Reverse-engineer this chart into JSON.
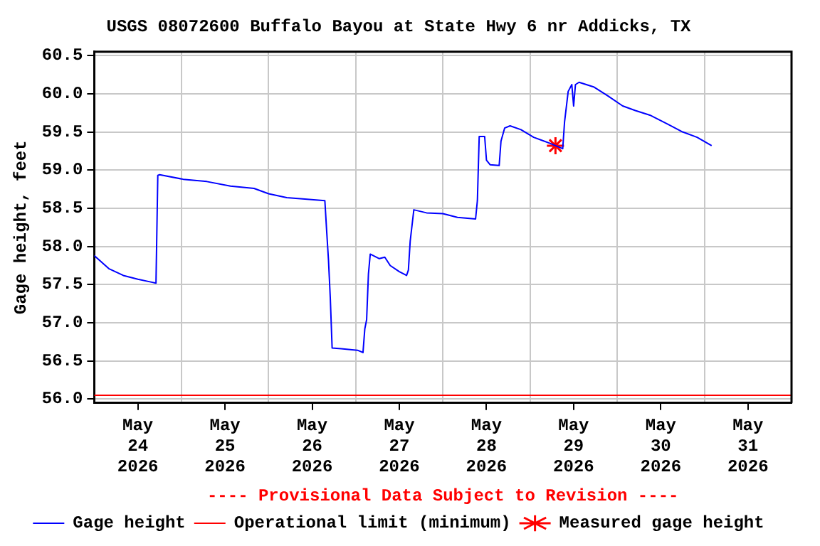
{
  "chart_data": {
    "type": "line",
    "title": "USGS 08072600 Buffalo Bayou at State Hwy 6 nr Addicks, TX",
    "ylabel": "Gage height, feet",
    "annotations": [
      "---- Provisional Data Subject to Revision ----"
    ],
    "xlim": [
      "2026-05-24T00:00",
      "2026-06-01T00:00"
    ],
    "xticks": [
      {
        "value": "2026-05-24T12:00",
        "label": "May 24 2026"
      },
      {
        "value": "2026-05-25T00:00",
        "label": null
      },
      {
        "value": "2026-05-25T12:00",
        "label": "May 25 2026"
      },
      {
        "value": "2026-05-26T00:00",
        "label": null
      },
      {
        "value": "2026-05-26T12:00",
        "label": "May 26 2026"
      },
      {
        "value": "2026-05-27T00:00",
        "label": null
      },
      {
        "value": "2026-05-27T12:00",
        "label": "May 27 2026"
      },
      {
        "value": "2026-05-28T00:00",
        "label": null
      },
      {
        "value": "2026-05-28T12:00",
        "label": "May 28 2026"
      },
      {
        "value": "2026-05-29T00:00",
        "label": null
      },
      {
        "value": "2026-05-29T12:00",
        "label": "May 29 2026"
      },
      {
        "value": "2026-05-30T00:00",
        "label": null
      },
      {
        "value": "2026-05-30T12:00",
        "label": "May 30 2026"
      },
      {
        "value": "2026-05-31T00:00",
        "label": null
      },
      {
        "value": "2026-05-31T12:00",
        "label": "May 31 2026"
      }
    ],
    "ylim": [
      55.95,
      60.55
    ],
    "yticks": [
      {
        "value": 56,
        "label": "56.0"
      },
      {
        "value": 56.5,
        "label": "56.5"
      },
      {
        "value": 57,
        "label": "57.0"
      },
      {
        "value": 57.5,
        "label": "57.5"
      },
      {
        "value": 58,
        "label": "58.0"
      },
      {
        "value": 58.5,
        "label": "58.5"
      },
      {
        "value": 59,
        "label": "59.0"
      },
      {
        "value": 59.5,
        "label": "59.5"
      },
      {
        "value": 60,
        "label": "60.0"
      },
      {
        "value": 60.5,
        "label": "60.5"
      }
    ],
    "grid": true,
    "legend": "bottom",
    "marker": "none",
    "series": [
      {
        "name": "Gage height",
        "color": "#0000ff",
        "x": [
          "2026-05-24T00:00",
          "2026-05-24T04:00",
          "2026-05-24T08:00",
          "2026-05-24T12:00",
          "2026-05-24T16:00",
          "2026-05-24T17:00",
          "2026-05-24T17:30",
          "2026-05-24T18:00",
          "2026-05-25T00:30",
          "2026-05-25T07:00",
          "2026-05-25T13:30",
          "2026-05-25T20:00",
          "2026-05-26T00:00",
          "2026-05-26T05:00",
          "2026-05-26T10:00",
          "2026-05-26T15:30",
          "2026-05-26T16:00",
          "2026-05-26T16:30",
          "2026-05-26T17:00",
          "2026-05-26T17:30",
          "2026-05-26T20:00",
          "2026-05-27T00:30",
          "2026-05-27T02:00",
          "2026-05-27T02:30",
          "2026-05-27T03:00",
          "2026-05-27T03:30",
          "2026-05-27T04:00",
          "2026-05-27T06:30",
          "2026-05-27T08:00",
          "2026-05-27T09:30",
          "2026-05-27T12:00",
          "2026-05-27T14:00",
          "2026-05-27T14:30",
          "2026-05-27T15:00",
          "2026-05-27T16:00",
          "2026-05-27T19:30",
          "2026-05-28T00:00",
          "2026-05-28T04:00",
          "2026-05-28T09:00",
          "2026-05-28T09:30",
          "2026-05-28T10:00",
          "2026-05-28T11:30",
          "2026-05-28T12:00",
          "2026-05-28T13:00",
          "2026-05-28T15:30",
          "2026-05-28T16:00",
          "2026-05-28T17:00",
          "2026-05-28T18:30",
          "2026-05-28T21:30",
          "2026-05-29T01:00",
          "2026-05-29T05:30",
          "2026-05-29T09:00",
          "2026-05-29T09:30",
          "2026-05-29T10:30",
          "2026-05-29T11:30",
          "2026-05-29T12:00",
          "2026-05-29T12:30",
          "2026-05-29T13:30",
          "2026-05-29T17:30",
          "2026-05-29T21:30",
          "2026-05-30T01:30",
          "2026-05-30T05:00",
          "2026-05-30T09:00",
          "2026-05-30T14:00",
          "2026-05-30T18:00",
          "2026-05-30T22:00",
          "2026-05-31T02:00"
        ],
        "values": [
          57.88,
          57.71,
          57.62,
          57.57,
          57.53,
          57.52,
          58.93,
          58.94,
          58.88,
          58.85,
          58.79,
          58.76,
          58.69,
          58.64,
          58.62,
          58.6,
          58.2,
          57.82,
          57.32,
          56.67,
          56.66,
          56.64,
          56.61,
          56.92,
          57.04,
          57.64,
          57.9,
          57.84,
          57.86,
          57.75,
          57.67,
          57.62,
          57.69,
          58.07,
          58.48,
          58.44,
          58.43,
          58.38,
          58.36,
          58.6,
          59.44,
          59.44,
          59.13,
          59.07,
          59.06,
          59.38,
          59.55,
          59.58,
          59.53,
          59.43,
          59.35,
          59.28,
          59.63,
          60.03,
          60.12,
          59.84,
          60.12,
          60.15,
          60.09,
          59.97,
          59.84,
          59.78,
          59.72,
          59.6,
          59.5,
          59.43,
          59.32
        ]
      },
      {
        "name": "Operational limit (minimum)",
        "color": "#ff0000",
        "type": "line",
        "x": [
          "2026-05-24T00:00",
          "2026-06-01T00:00"
        ],
        "values": [
          56.05,
          56.05
        ]
      },
      {
        "name": "Measured gage height",
        "color": "#ff0000",
        "type": "scatter",
        "marker": "cross",
        "x": [
          "2026-05-29T07:00"
        ],
        "values": [
          59.32
        ]
      }
    ]
  }
}
